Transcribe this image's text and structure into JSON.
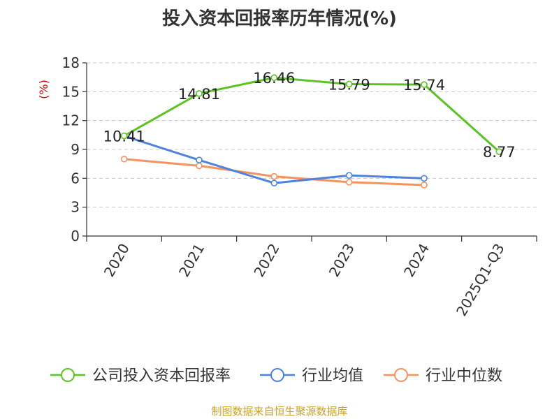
{
  "chart_data": {
    "type": "line",
    "title": "投入资本回报率历年情况(%)",
    "ylabel": "(%)",
    "categories": [
      "2020",
      "2021",
      "2022",
      "2023",
      "2024",
      "2025Q1-Q3"
    ],
    "ylim": [
      0,
      18
    ],
    "yticks": [
      0,
      3,
      6,
      9,
      12,
      15,
      18
    ],
    "grid": true,
    "legend_position": "bottom",
    "series": [
      {
        "name": "公司投入资本回报率",
        "color": "#5cc324",
        "values": [
          10.41,
          14.81,
          16.46,
          15.79,
          15.74,
          8.77
        ],
        "labels": [
          "10.41",
          "14.81",
          "16.46",
          "15.79",
          "15.74",
          "8.77"
        ]
      },
      {
        "name": "行业均值",
        "color": "#4f82df",
        "values": [
          10.4,
          7.9,
          5.5,
          6.3,
          6.0,
          null
        ]
      },
      {
        "name": "行业中位数",
        "color": "#f5925f",
        "values": [
          8.0,
          7.3,
          6.2,
          5.6,
          5.3,
          null
        ]
      }
    ]
  },
  "footer": {
    "source": "制图数据来自恒生聚源数据库"
  },
  "colors": {
    "ylabel": "#cc0000",
    "axis": "#333333",
    "grid": "#c8c8c8"
  }
}
